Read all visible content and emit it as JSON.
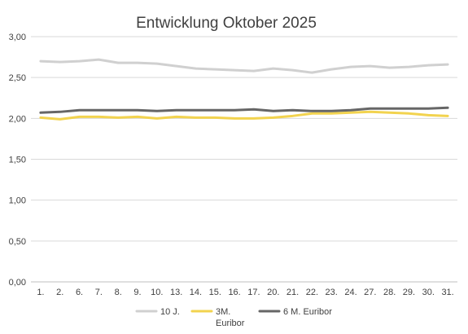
{
  "chart_data": {
    "type": "line",
    "title": "Entwicklung Oktober 2025",
    "xlabel": "",
    "ylabel": "",
    "ylim": [
      0,
      3
    ],
    "yticks": [
      "0,00",
      "0,50",
      "1,00",
      "1,50",
      "2,00",
      "2,50",
      "3,00"
    ],
    "grid": true,
    "legend_position": "bottom",
    "categories": [
      "1.",
      "2.",
      "6.",
      "7.",
      "8.",
      "9.",
      "10.",
      "13.",
      "14.",
      "15.",
      "16.",
      "17.",
      "20.",
      "21.",
      "22.",
      "23.",
      "24.",
      "27.",
      "28.",
      "29.",
      "30.",
      "31."
    ],
    "series": [
      {
        "name": "10 J.",
        "color": "#d0d0d0",
        "values": [
          2.7,
          2.69,
          2.7,
          2.72,
          2.68,
          2.68,
          2.67,
          2.64,
          2.61,
          2.6,
          2.59,
          2.58,
          2.61,
          2.59,
          2.56,
          2.6,
          2.63,
          2.64,
          2.62,
          2.63,
          2.65,
          2.66
        ]
      },
      {
        "name": "3M. Euribor",
        "name_lines": [
          "3M.",
          "Euribor"
        ],
        "color": "#f2d34f",
        "values": [
          2.01,
          1.99,
          2.02,
          2.02,
          2.01,
          2.02,
          2.0,
          2.02,
          2.01,
          2.01,
          2.0,
          2.0,
          2.01,
          2.03,
          2.06,
          2.06,
          2.07,
          2.08,
          2.07,
          2.06,
          2.04,
          2.03
        ]
      },
      {
        "name": "6 M. Euribor",
        "color": "#666666",
        "values": [
          2.07,
          2.08,
          2.1,
          2.1,
          2.1,
          2.1,
          2.09,
          2.1,
          2.1,
          2.1,
          2.1,
          2.11,
          2.09,
          2.1,
          2.09,
          2.09,
          2.1,
          2.12,
          2.12,
          2.12,
          2.12,
          2.13
        ]
      }
    ]
  }
}
